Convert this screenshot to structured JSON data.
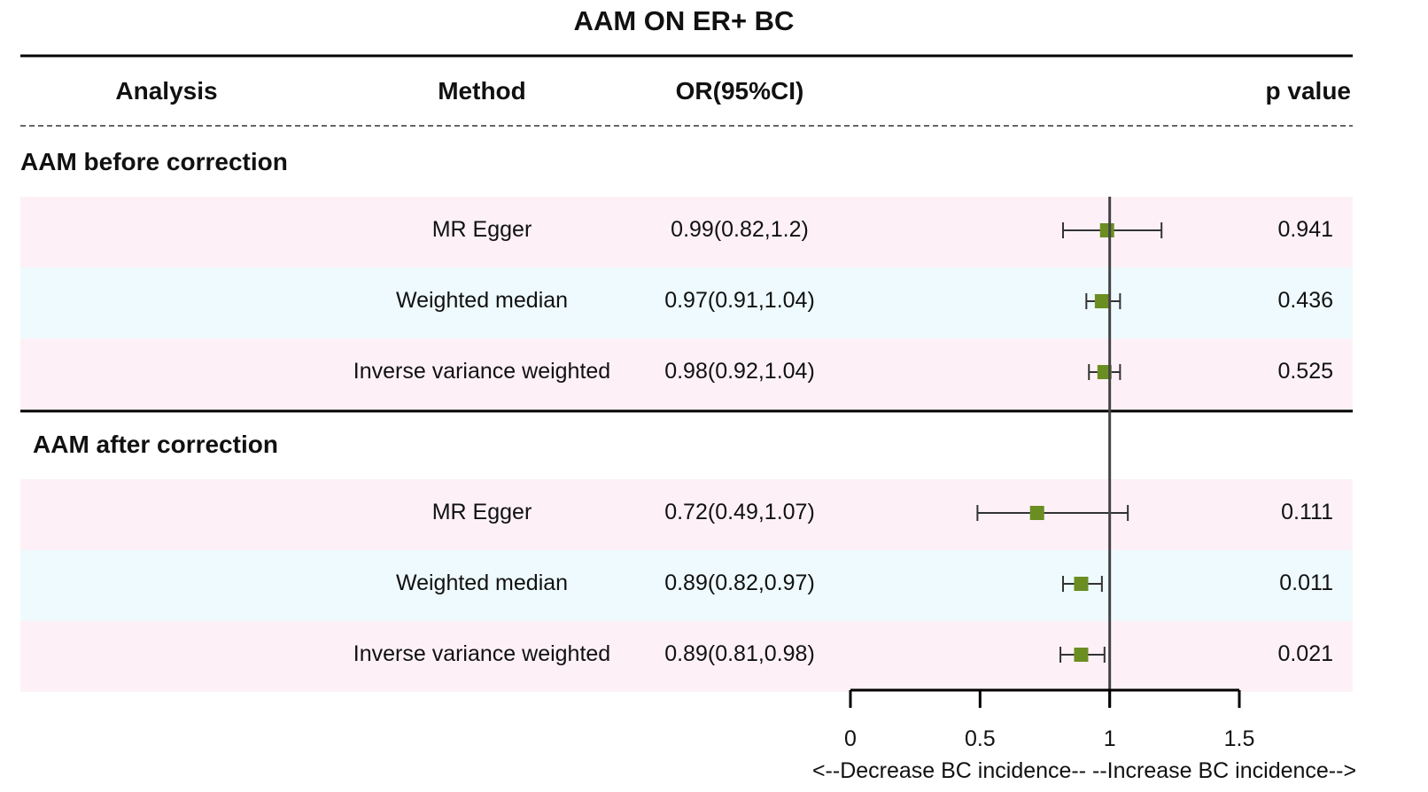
{
  "title": "AAM ON ER+ BC",
  "headers": {
    "analysis": "Analysis",
    "method": "Method",
    "or_ci": "OR(95%CI)",
    "p_value": "p value"
  },
  "colors": {
    "marker": "#6b8e23",
    "band_pink": "#fdf1f7",
    "band_blue": "#eefafd",
    "line": "#000000",
    "ref_line": "#444444"
  },
  "axis_label": "<--Decrease BC incidence-- --Increase BC incidence-->",
  "chart_data": {
    "type": "forest",
    "title": "AAM ON ER+ BC",
    "x_axis": {
      "ticks": [
        0,
        0.5,
        1,
        1.5
      ],
      "tick_labels": [
        "0",
        "0.5",
        "1",
        "1.5"
      ],
      "xlim": [
        0,
        1.5
      ],
      "reference": 1,
      "label": "<--Decrease BC incidence-- --Increase BC incidence-->"
    },
    "groups": [
      {
        "label": "AAM before correction",
        "rows": [
          {
            "method": "MR Egger",
            "or_text": "0.99(0.82,1.2)",
            "or": 0.99,
            "lo": 0.82,
            "hi": 1.2,
            "p": "0.941"
          },
          {
            "method": "Weighted median",
            "or_text": "0.97(0.91,1.04)",
            "or": 0.97,
            "lo": 0.91,
            "hi": 1.04,
            "p": "0.436"
          },
          {
            "method": "Inverse variance weighted",
            "or_text": "0.98(0.92,1.04)",
            "or": 0.98,
            "lo": 0.92,
            "hi": 1.04,
            "p": "0.525"
          }
        ]
      },
      {
        "label": "AAM after correction",
        "rows": [
          {
            "method": "MR Egger",
            "or_text": "0.72(0.49,1.07)",
            "or": 0.72,
            "lo": 0.49,
            "hi": 1.07,
            "p": "0.111"
          },
          {
            "method": "Weighted median",
            "or_text": "0.89(0.82,0.97)",
            "or": 0.89,
            "lo": 0.82,
            "hi": 0.97,
            "p": "0.011"
          },
          {
            "method": "Inverse variance weighted",
            "or_text": "0.89(0.81,0.98)",
            "or": 0.89,
            "lo": 0.81,
            "hi": 0.98,
            "p": "0.021"
          }
        ]
      }
    ]
  }
}
